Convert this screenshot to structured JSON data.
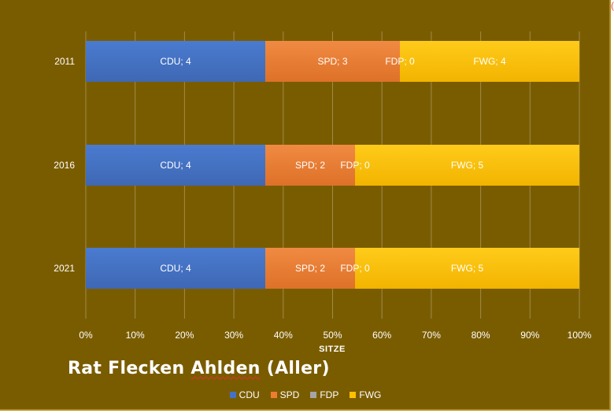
{
  "chart_data": {
    "type": "bar",
    "orientation": "horizontal",
    "stacking": "percent",
    "title": "Rat Flecken Ahlden (Aller)",
    "xlabel": "SITZE",
    "ylabel": "",
    "xlim": [
      0,
      100
    ],
    "x_ticks": [
      "0%",
      "10%",
      "20%",
      "30%",
      "40%",
      "50%",
      "60%",
      "70%",
      "80%",
      "90%",
      "100%"
    ],
    "categories": [
      "2011",
      "2016",
      "2021"
    ],
    "series": [
      {
        "name": "CDU",
        "color": "#4472c4",
        "values": [
          4,
          4,
          4
        ]
      },
      {
        "name": "SPD",
        "color": "#ed7d31",
        "values": [
          3,
          2,
          2
        ]
      },
      {
        "name": "FDP",
        "color": "#a5a5a5",
        "values": [
          0,
          0,
          0
        ]
      },
      {
        "name": "FWG",
        "color": "#ffc000",
        "values": [
          4,
          5,
          5
        ]
      }
    ],
    "data_label_format": "{series}; {value}",
    "legend_position": "bottom",
    "grid": true
  },
  "corner_mark": "("
}
